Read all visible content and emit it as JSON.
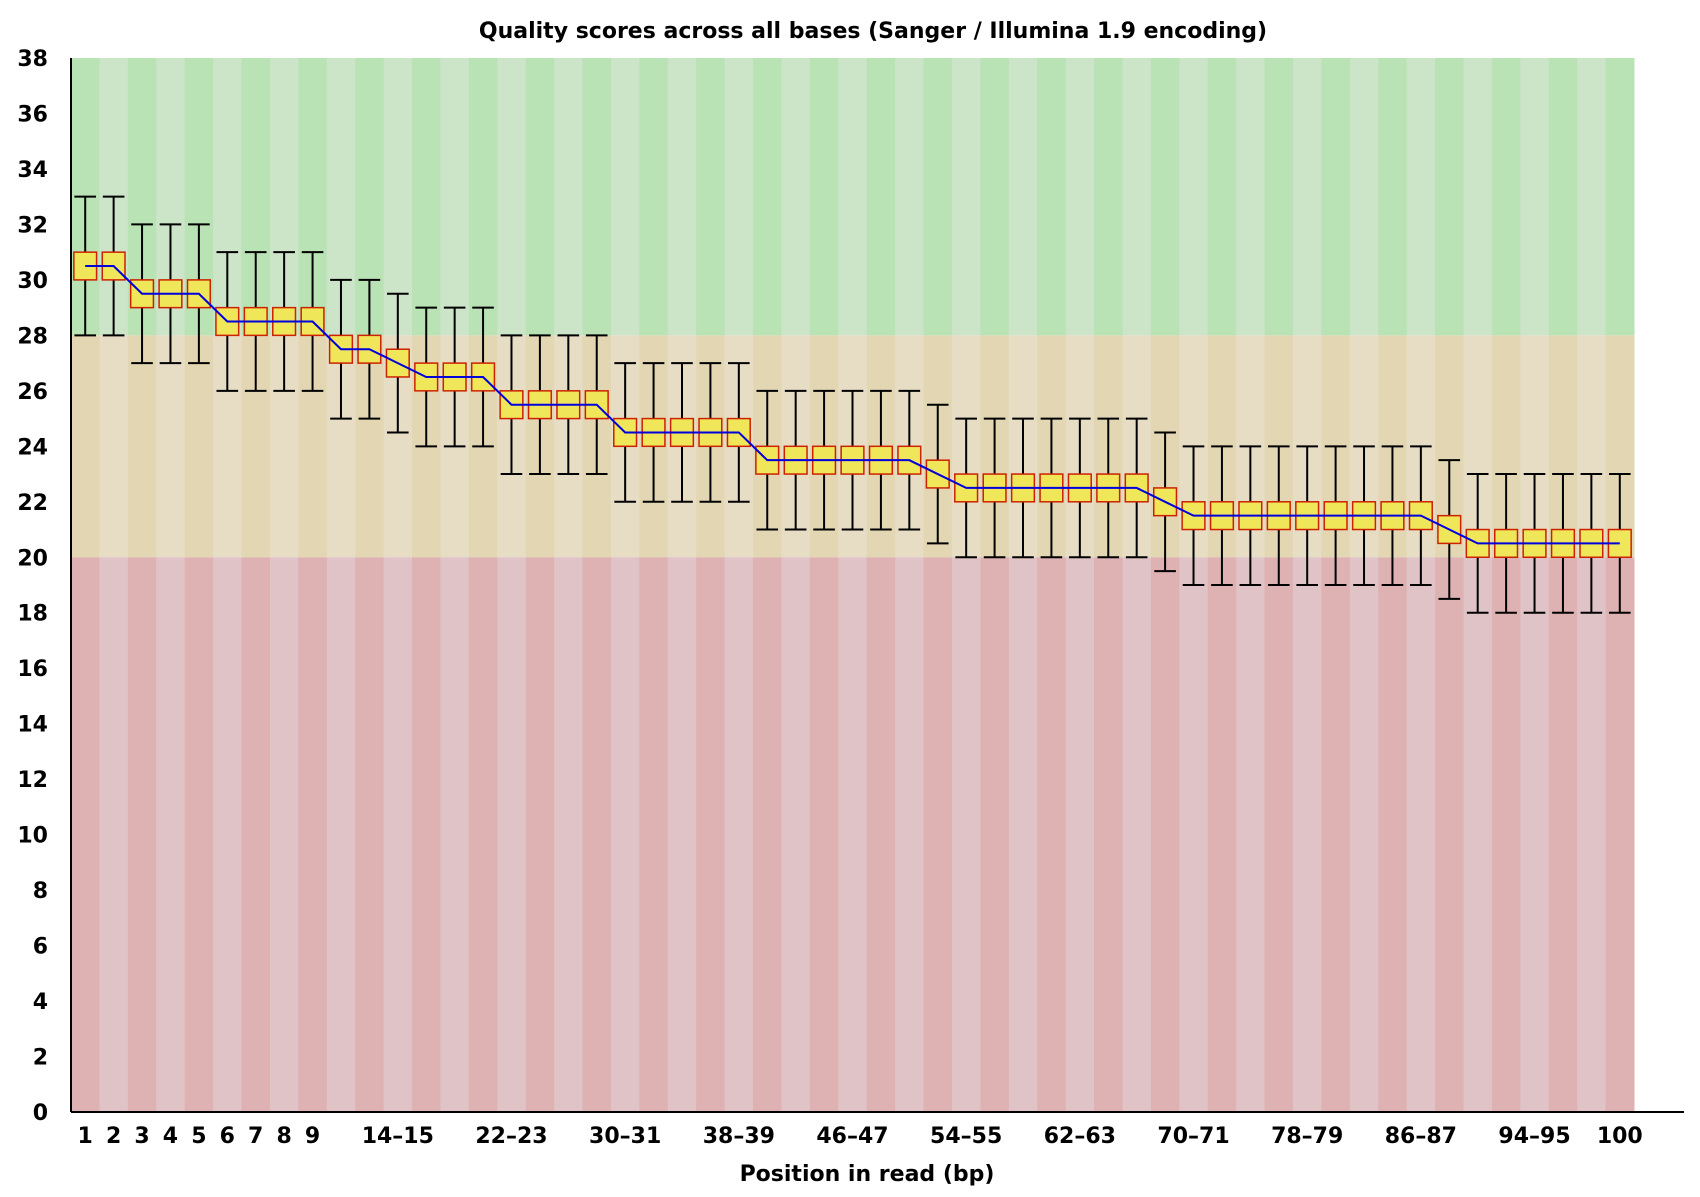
{
  "chart_data": {
    "type": "box",
    "title": "Quality scores across all bases (Sanger / Illumina 1.9 encoding)",
    "xlabel": "Position in read (bp)",
    "ylabel": "",
    "ylim": [
      0,
      38
    ],
    "yticks": [
      "0",
      "2",
      "4",
      "6",
      "8",
      "10",
      "12",
      "14",
      "16",
      "18",
      "20",
      "22",
      "24",
      "26",
      "28",
      "30",
      "32",
      "34",
      "36",
      "38"
    ],
    "categories": [
      "1",
      "2",
      "3",
      "4",
      "5",
      "6",
      "7",
      "8",
      "9",
      "10-11",
      "12-13",
      "14-15",
      "16-17",
      "18-19",
      "20-21",
      "22-23",
      "24-25",
      "26-27",
      "28-29",
      "30-31",
      "32-33",
      "34-35",
      "36-37",
      "38-39",
      "40-41",
      "42-43",
      "44-45",
      "46-47",
      "48-49",
      "50-51",
      "52-53",
      "54-55",
      "56-57",
      "58-59",
      "60-61",
      "62-63",
      "64-65",
      "66-67",
      "68-69",
      "70-71",
      "72-73",
      "74-75",
      "76-77",
      "78-79",
      "80-81",
      "82-83",
      "84-85",
      "86-87",
      "88-89",
      "90-91",
      "92-93",
      "94-95",
      "96-97",
      "98-99",
      "100"
    ],
    "visible_xtick_labels": [
      "1",
      "2",
      "3",
      "4",
      "5",
      "6",
      "7",
      "8",
      "9",
      "14-15",
      "22-23",
      "30-31",
      "38-39",
      "46-47",
      "54-55",
      "62-63",
      "70-71",
      "78-79",
      "86-87",
      "94-95",
      "100"
    ],
    "background_zones": [
      {
        "name": "good",
        "from": 28,
        "to": 38,
        "colors": [
          "#b9e2b5",
          "#cce4c8"
        ]
      },
      {
        "name": "reasonable",
        "from": 20,
        "to": 28,
        "colors": [
          "#e3d7b3",
          "#e7ddc5"
        ]
      },
      {
        "name": "poor",
        "from": 0,
        "to": 20,
        "colors": [
          "#deb1b2",
          "#e0c3c6"
        ]
      }
    ],
    "colors": {
      "box_fill": "#f0e65a",
      "box_stroke": "#cc2200",
      "mean_line": "#0000dd",
      "whisker": "#000000"
    },
    "series": {
      "mean": [
        30.5,
        30.5,
        29.5,
        29.5,
        29.5,
        28.5,
        28.5,
        28.5,
        28.5,
        27.5,
        27.5,
        27.0,
        26.5,
        26.5,
        26.5,
        25.5,
        25.5,
        25.5,
        25.5,
        24.5,
        24.5,
        24.5,
        24.5,
        24.5,
        23.5,
        23.5,
        23.5,
        23.5,
        23.5,
        23.5,
        23.0,
        22.5,
        22.5,
        22.5,
        22.5,
        22.5,
        22.5,
        22.5,
        22.0,
        21.5,
        21.5,
        21.5,
        21.5,
        21.5,
        21.5,
        21.5,
        21.5,
        21.5,
        21.0,
        20.5,
        20.5,
        20.5,
        20.5,
        20.5,
        20.5
      ],
      "box_low": [
        30,
        30,
        29,
        29,
        29,
        28,
        28,
        28,
        28,
        27,
        27,
        26.5,
        26,
        26,
        26,
        25,
        25,
        25,
        25,
        24,
        24,
        24,
        24,
        24,
        23,
        23,
        23,
        23,
        23,
        23,
        22.5,
        22,
        22,
        22,
        22,
        22,
        22,
        22,
        21.5,
        21,
        21,
        21,
        21,
        21,
        21,
        21,
        21,
        21,
        20.5,
        20,
        20,
        20,
        20,
        20,
        20
      ],
      "box_high": [
        31,
        31,
        30,
        30,
        30,
        29,
        29,
        29,
        29,
        28,
        28,
        27.5,
        27,
        27,
        27,
        26,
        26,
        26,
        26,
        25,
        25,
        25,
        25,
        25,
        24,
        24,
        24,
        24,
        24,
        24,
        23.5,
        23,
        23,
        23,
        23,
        23,
        23,
        23,
        22.5,
        22,
        22,
        22,
        22,
        22,
        22,
        22,
        22,
        22,
        21.5,
        21,
        21,
        21,
        21,
        21,
        21
      ],
      "whisker_low": [
        28,
        28,
        27,
        27,
        27,
        26,
        26,
        26,
        26,
        25,
        25,
        24.5,
        24,
        24,
        24,
        23,
        23,
        23,
        23,
        22,
        22,
        22,
        22,
        22,
        21,
        21,
        21,
        21,
        21,
        21,
        20.5,
        20,
        20,
        20,
        20,
        20,
        20,
        20,
        19.5,
        19,
        19,
        19,
        19,
        19,
        19,
        19,
        19,
        19,
        18.5,
        18,
        18,
        18,
        18,
        18,
        18
      ],
      "whisker_high": [
        33,
        33,
        32,
        32,
        32,
        31,
        31,
        31,
        31,
        30,
        30,
        29.5,
        29,
        29,
        29,
        28,
        28,
        28,
        28,
        27,
        27,
        27,
        27,
        27,
        26,
        26,
        26,
        26,
        26,
        26,
        25.5,
        25,
        25,
        25,
        25,
        25,
        25,
        25,
        24.5,
        24,
        24,
        24,
        24,
        24,
        24,
        24,
        24,
        24,
        23.5,
        23,
        23,
        23,
        23,
        23,
        23
      ]
    }
  }
}
